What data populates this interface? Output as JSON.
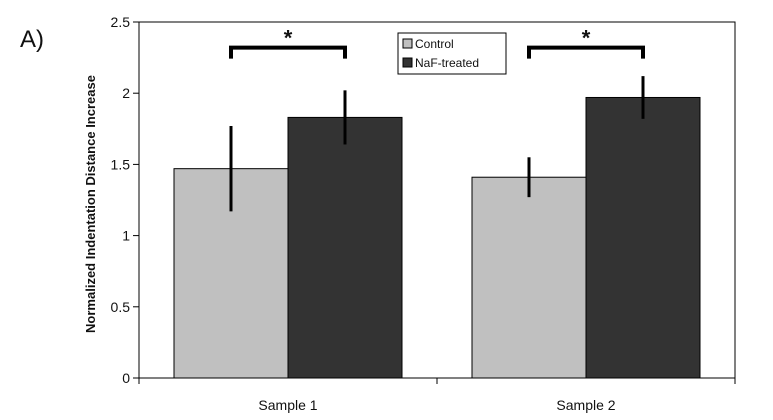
{
  "panel_label": "A)",
  "chart_data": {
    "type": "bar",
    "categories": [
      "Sample 1",
      "Sample 2"
    ],
    "series": [
      {
        "name": "Control",
        "values": [
          1.47,
          1.41
        ],
        "errors": [
          0.3,
          0.14
        ],
        "color": "#c0c0c0"
      },
      {
        "name": "NaF-treated",
        "values": [
          1.83,
          1.97
        ],
        "errors": [
          0.19,
          0.15
        ],
        "color": "#333333"
      }
    ],
    "title": "",
    "xlabel": "",
    "ylabel": "Normalized Indentation Distance Increase",
    "ylim": [
      0,
      2.5
    ],
    "yticks": [
      0,
      0.5,
      1,
      1.5,
      2,
      2.5
    ],
    "ytick_labels": [
      "0",
      "0.5",
      "1",
      "1.5",
      "2",
      "2.5"
    ],
    "legend_position": "top-center",
    "significance": [
      {
        "category": "Sample 1",
        "label": "*",
        "level": 2.32
      },
      {
        "category": "Sample 2",
        "label": "*",
        "level": 2.32
      }
    ]
  }
}
